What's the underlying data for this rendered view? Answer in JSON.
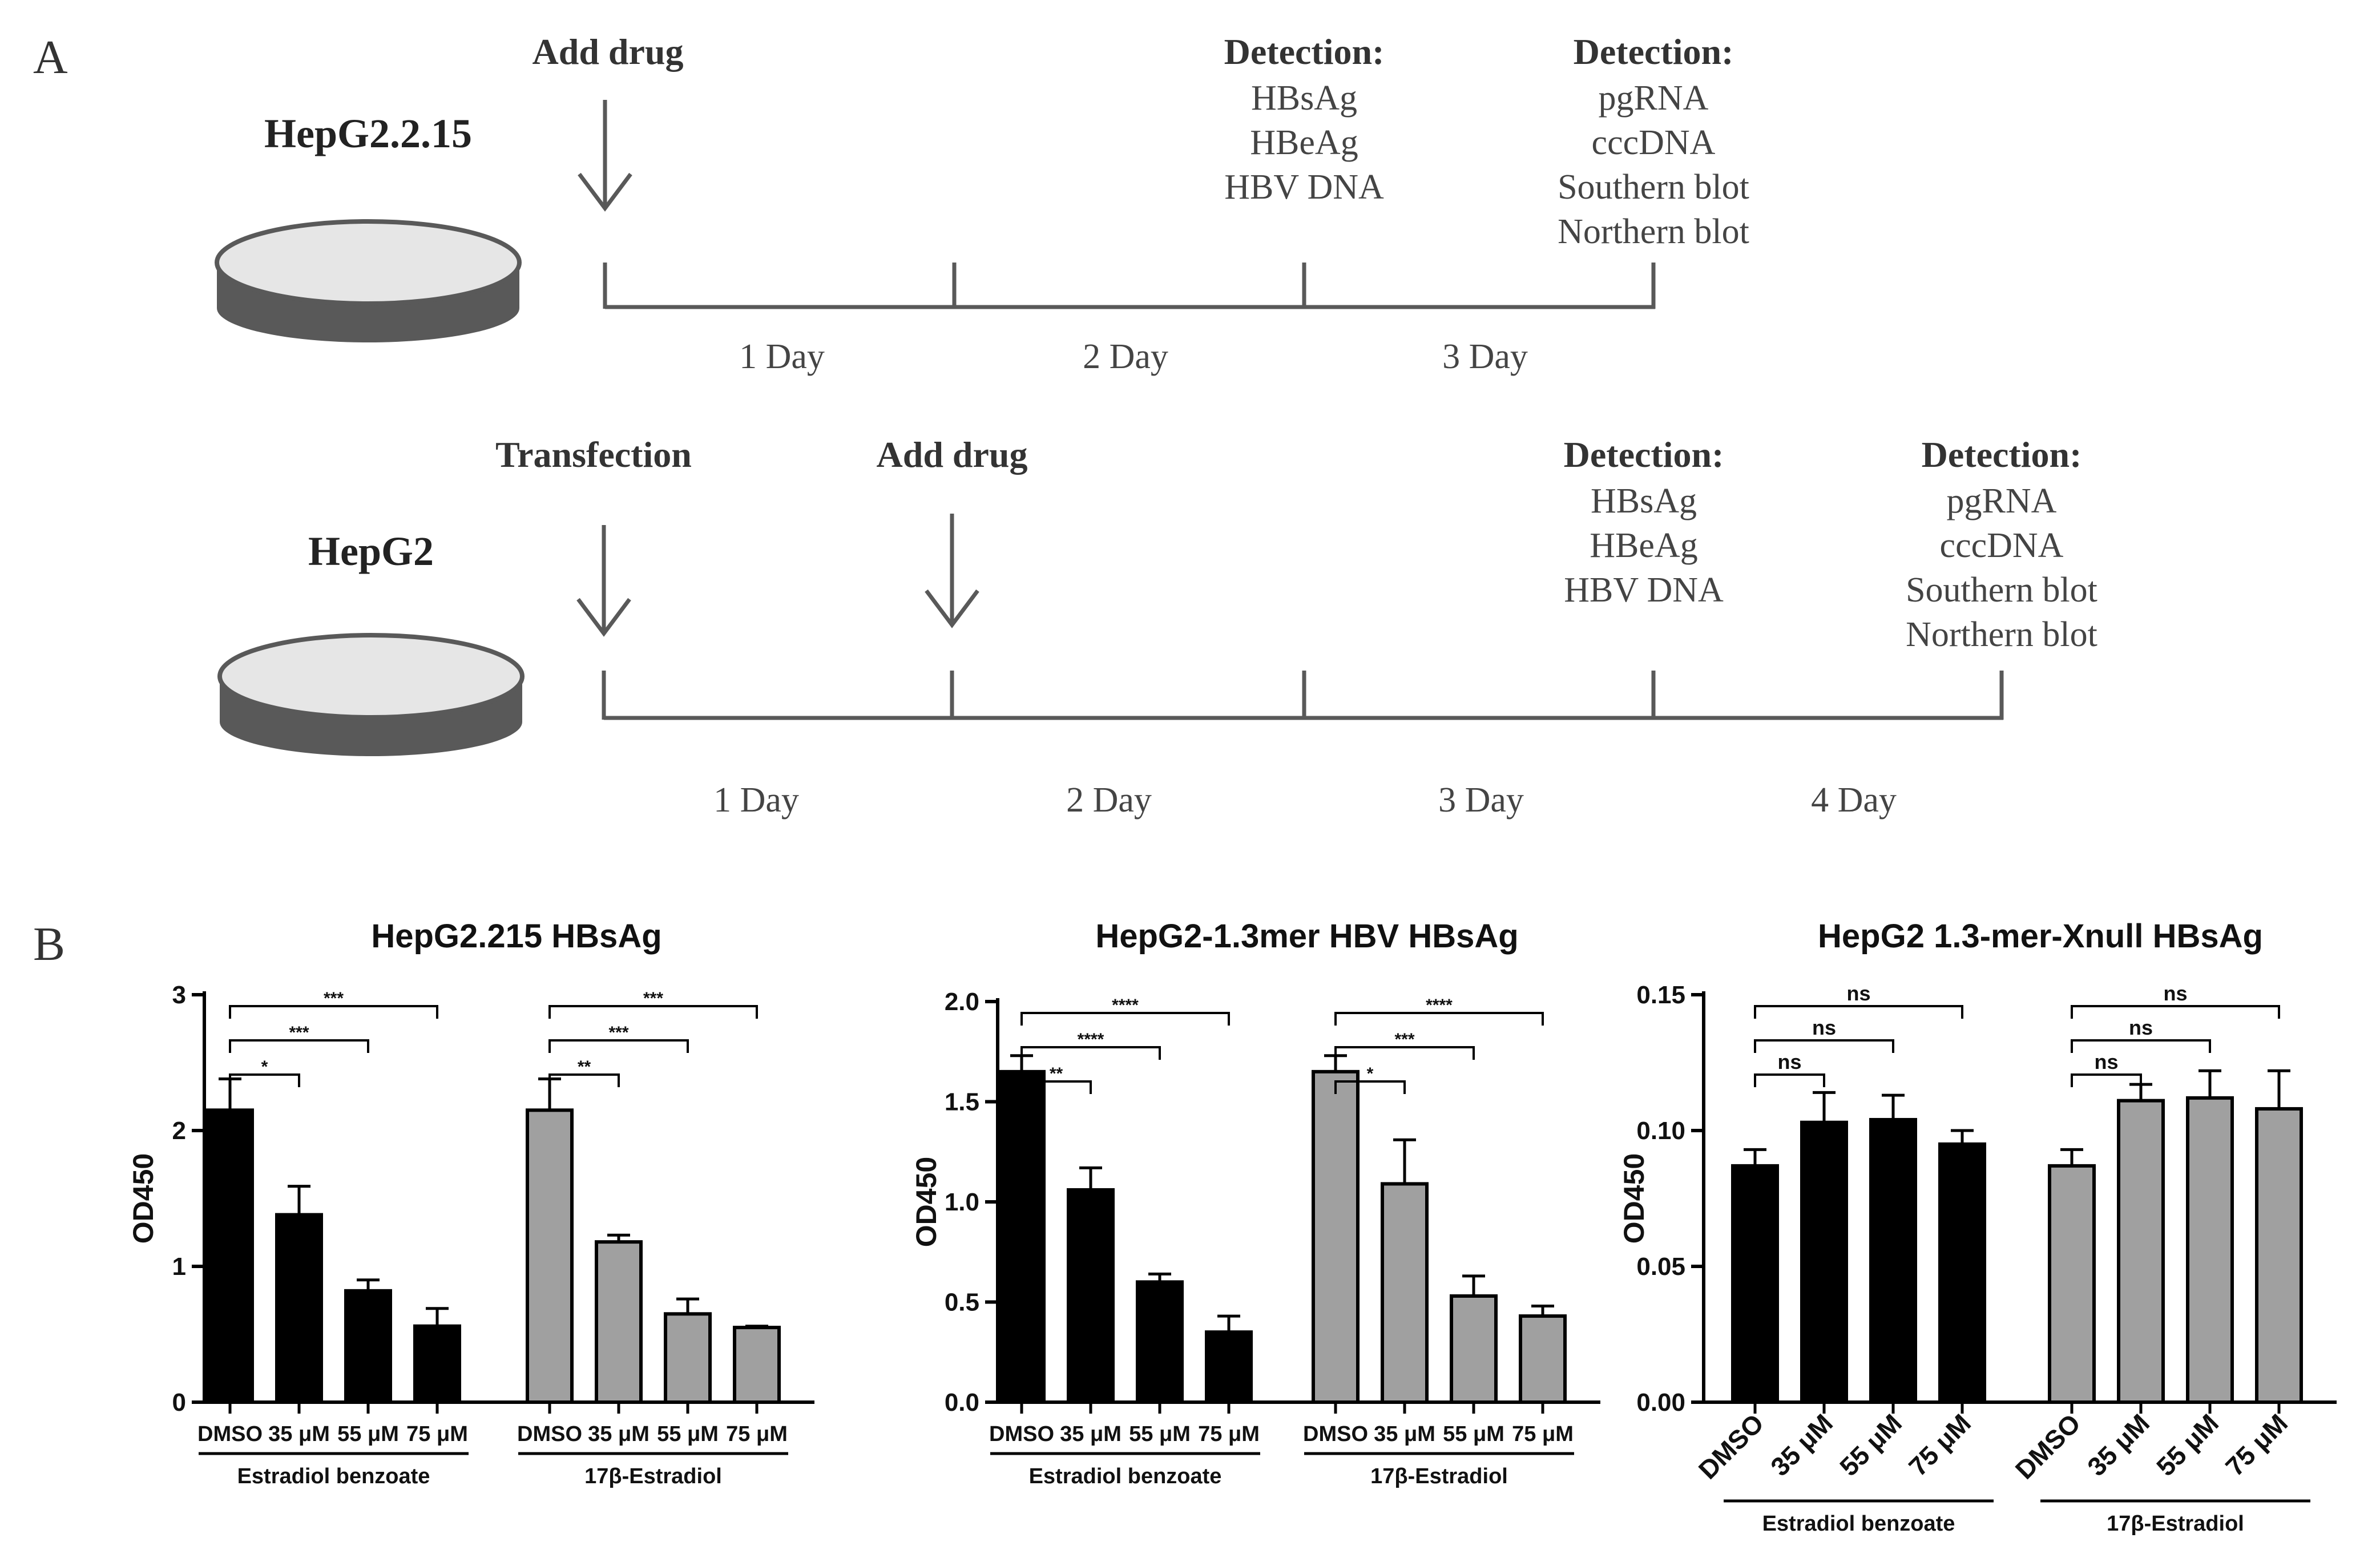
{
  "panel_a": {
    "label": "A",
    "top": {
      "cell_line": "HepG2.2.15",
      "add_drug": "Add drug",
      "detect1": {
        "title": "Detection:",
        "lines": [
          "HBsAg",
          "HBeAg",
          "HBV DNA"
        ]
      },
      "detect2": {
        "title": "Detection:",
        "lines": [
          "pgRNA",
          "cccDNA",
          "Southern blot",
          "Northern blot"
        ]
      },
      "days": [
        "1 Day",
        "2 Day",
        "3 Day"
      ]
    },
    "bottom": {
      "cell_line": "HepG2",
      "transfection": "Transfection",
      "add_drug": "Add drug",
      "detect1": {
        "title": "Detection:",
        "lines": [
          "HBsAg",
          "HBeAg",
          "HBV DNA"
        ]
      },
      "detect2": {
        "title": "Detection:",
        "lines": [
          "pgRNA",
          "cccDNA",
          "Southern blot",
          "Northern blot"
        ]
      },
      "days": [
        "1 Day",
        "2 Day",
        "3 Day",
        "4 Day"
      ]
    }
  },
  "panel_b": {
    "label": "B"
  },
  "colors": {
    "black_bar": "#000000",
    "gray_bar": "#a0a0a0",
    "timeline": "#595959",
    "dish_side": "#595959",
    "dish_top": "#e6e6e6"
  },
  "chart_data": [
    {
      "type": "bar",
      "title": "HepG2.215   HBsAg",
      "ylabel": "OD450",
      "ylim": [
        0,
        3
      ],
      "yticks": [
        "0",
        "1",
        "2",
        "3"
      ],
      "categories": [
        "DMSO",
        "35 μM",
        "55 μM",
        "75 μM"
      ],
      "rotate_labels": false,
      "series": [
        {
          "name": "Estradiol benzoate",
          "color": "#000000",
          "values": [
            2.15,
            1.38,
            0.82,
            0.56
          ],
          "errors": [
            0.23,
            0.21,
            0.08,
            0.13
          ],
          "sig": [
            "*",
            "***",
            "***"
          ]
        },
        {
          "name": "17β-Estradiol",
          "color": "#a0a0a0",
          "values": [
            2.15,
            1.18,
            0.65,
            0.55
          ],
          "errors": [
            0.23,
            0.05,
            0.11,
            0.01
          ],
          "sig": [
            "**",
            "***",
            "***"
          ]
        }
      ]
    },
    {
      "type": "bar",
      "title": "HepG2-1.3mer HBV HBsAg",
      "ylabel": "OD450",
      "ylim": [
        0,
        2
      ],
      "yticks": [
        "0.0",
        "0.5",
        "1.0",
        "1.5",
        "2.0"
      ],
      "categories": [
        "DMSO",
        "35 μM",
        "55 μM",
        "75 μM"
      ],
      "rotate_labels": false,
      "series": [
        {
          "name": "Estradiol benzoate",
          "color": "#000000",
          "values": [
            1.65,
            1.06,
            0.6,
            0.35
          ],
          "errors": [
            0.08,
            0.11,
            0.04,
            0.08
          ],
          "sig": [
            "**",
            "****",
            "****"
          ]
        },
        {
          "name": "17β-Estradiol",
          "color": "#a0a0a0",
          "values": [
            1.65,
            1.09,
            0.53,
            0.43
          ],
          "errors": [
            0.08,
            0.22,
            0.1,
            0.05
          ],
          "sig": [
            "*",
            "***",
            "****"
          ]
        }
      ]
    },
    {
      "type": "bar",
      "title": "HepG2 1.3-mer-Xnull HBsAg",
      "ylabel": "OD450",
      "ylim": [
        0,
        0.15
      ],
      "yticks": [
        "0.00",
        "0.05",
        "0.10",
        "0.15"
      ],
      "categories": [
        "DMSO",
        "35 μM",
        "55 μM",
        "75 μM"
      ],
      "rotate_labels": true,
      "series": [
        {
          "name": "Estradiol benzoate",
          "color": "#000000",
          "values": [
            0.087,
            0.103,
            0.104,
            0.095
          ],
          "errors": [
            0.006,
            0.011,
            0.009,
            0.005
          ],
          "sig": [
            "ns",
            "ns",
            "ns"
          ]
        },
        {
          "name": "17β-Estradiol",
          "color": "#a0a0a0",
          "values": [
            0.087,
            0.111,
            0.112,
            0.108
          ],
          "errors": [
            0.006,
            0.006,
            0.01,
            0.014
          ],
          "sig": [
            "ns",
            "ns",
            "ns"
          ]
        }
      ]
    }
  ]
}
